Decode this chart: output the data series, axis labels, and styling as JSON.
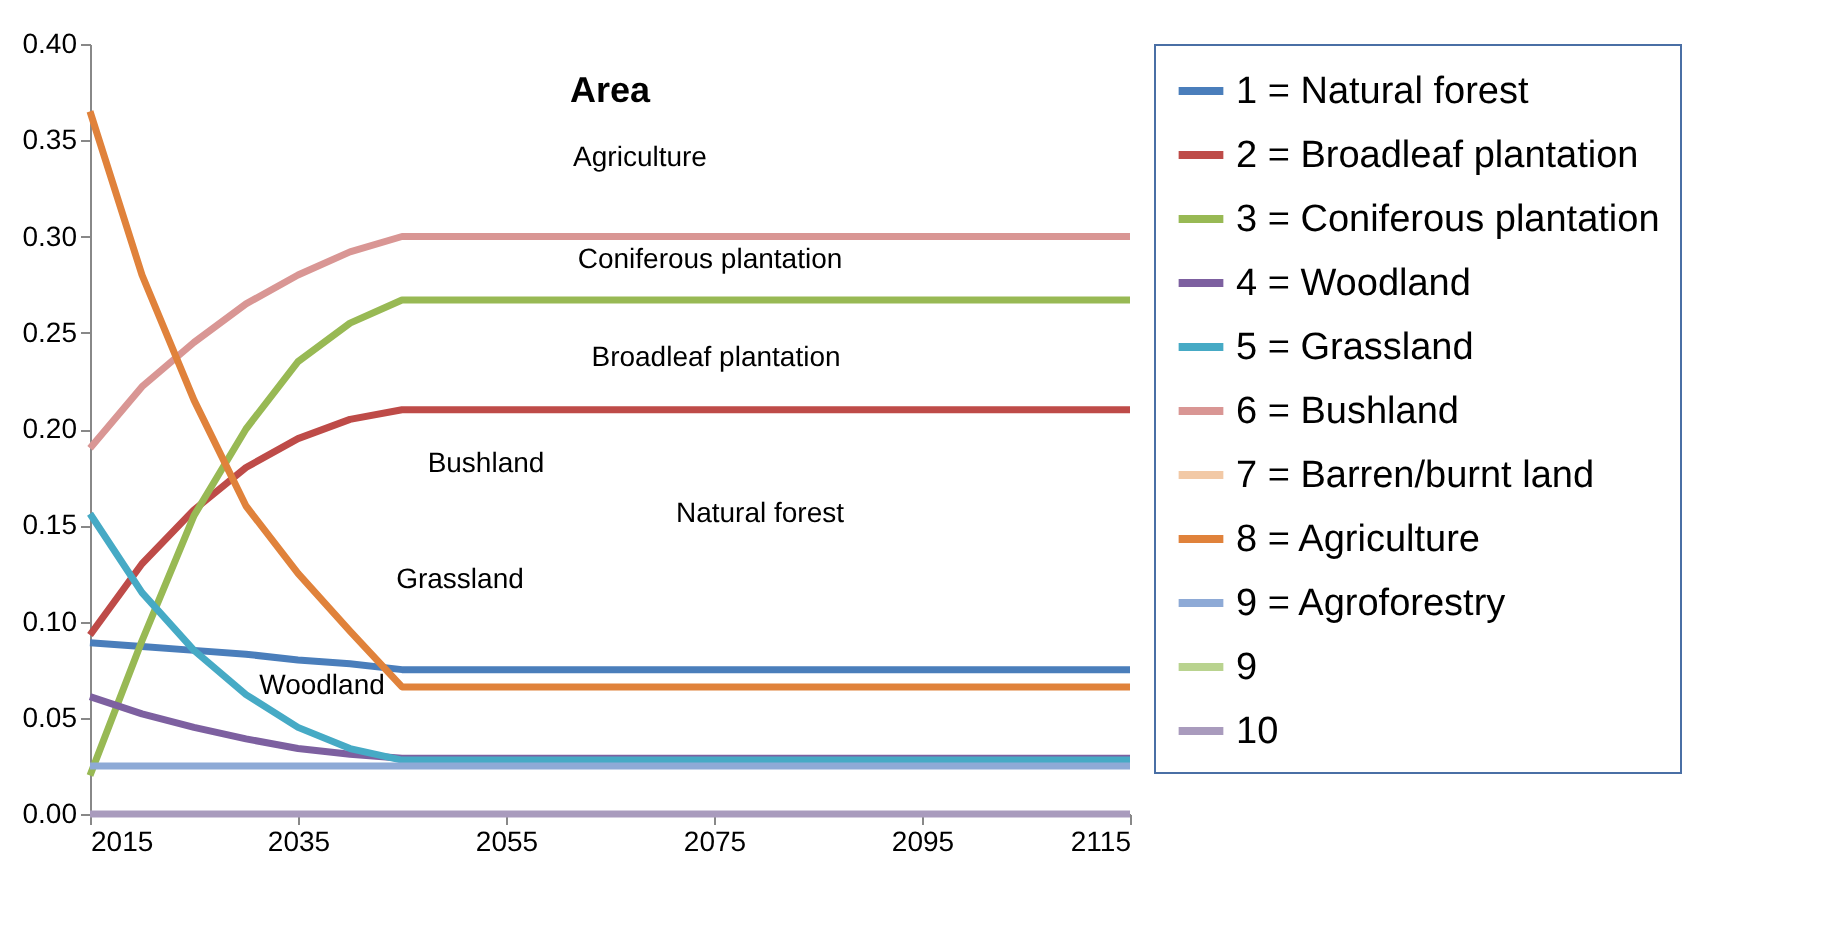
{
  "chart_data": {
    "type": "line",
    "title": "Area",
    "x": [
      2015,
      2020,
      2025,
      2030,
      2035,
      2040,
      2045,
      2115
    ],
    "series": [
      {
        "name": "1 = Natural forest",
        "color": "#4a7ebb",
        "values": [
          0.089,
          0.087,
          0.085,
          0.083,
          0.08,
          0.078,
          0.075,
          0.075
        ]
      },
      {
        "name": "2 = Broadleaf plantation",
        "color": "#be4b48",
        "values": [
          0.093,
          0.13,
          0.158,
          0.18,
          0.195,
          0.205,
          0.21,
          0.21
        ]
      },
      {
        "name": "3 = Coniferous plantation",
        "color": "#98b954",
        "values": [
          0.02,
          0.09,
          0.155,
          0.2,
          0.235,
          0.255,
          0.267,
          0.267
        ]
      },
      {
        "name": "4 = Woodland",
        "color": "#7d60a0",
        "values": [
          0.061,
          0.052,
          0.045,
          0.039,
          0.034,
          0.031,
          0.029,
          0.029
        ]
      },
      {
        "name": "5 = Grassland",
        "color": "#46aac5",
        "values": [
          0.156,
          0.115,
          0.085,
          0.062,
          0.045,
          0.034,
          0.028,
          0.028
        ]
      },
      {
        "name": "6 = Bushland",
        "color": "#d99694",
        "values": [
          0.19,
          0.222,
          0.245,
          0.265,
          0.28,
          0.292,
          0.3,
          0.3
        ]
      },
      {
        "name": "7 = Barren/burnt land",
        "color": "#f2c9a6",
        "values": [
          null,
          null,
          null,
          null,
          null,
          null,
          null,
          null
        ]
      },
      {
        "name": "8 = Agriculture",
        "color": "#e0823b",
        "values": [
          0.365,
          0.28,
          0.215,
          0.16,
          0.125,
          0.095,
          0.066,
          0.066
        ]
      },
      {
        "name": "9 = Agroforestry",
        "color": "#8eaad6",
        "values": [
          0.025,
          0.025,
          0.025,
          0.025,
          0.025,
          0.025,
          0.025,
          0.025
        ]
      },
      {
        "name": "9",
        "color": "#b9d38f",
        "values": [
          null,
          null,
          null,
          null,
          null,
          null,
          null,
          null
        ]
      },
      {
        "name": "10",
        "color": "#a99bbd",
        "values": [
          0,
          0,
          0,
          0,
          0,
          0,
          0,
          0
        ]
      }
    ],
    "annotations": [
      "Agriculture",
      "Coniferous plantation",
      "Broadleaf plantation",
      "Bushland",
      "Natural forest",
      "Grassland",
      "Woodland"
    ],
    "xlim": [
      2015,
      2115
    ],
    "xticks": [
      2015,
      2035,
      2055,
      2075,
      2095,
      2115
    ],
    "ylim": [
      0,
      0.4
    ],
    "yticks": [
      {
        "value": 0,
        "label": "0.00"
      },
      {
        "value": 0.05,
        "label": "0.05"
      },
      {
        "value": 0.1,
        "label": "0.10"
      },
      {
        "value": 0.15,
        "label": "0.15"
      },
      {
        "value": 0.2,
        "label": "0.20"
      },
      {
        "value": 0.25,
        "label": "0.25"
      },
      {
        "value": 0.3,
        "label": "0.30"
      },
      {
        "value": 0.35,
        "label": "0.35"
      },
      {
        "value": 0.4,
        "label": "0.40"
      }
    ],
    "grid": false,
    "legend": "right",
    "marker": "none",
    "line_style": "solid"
  }
}
